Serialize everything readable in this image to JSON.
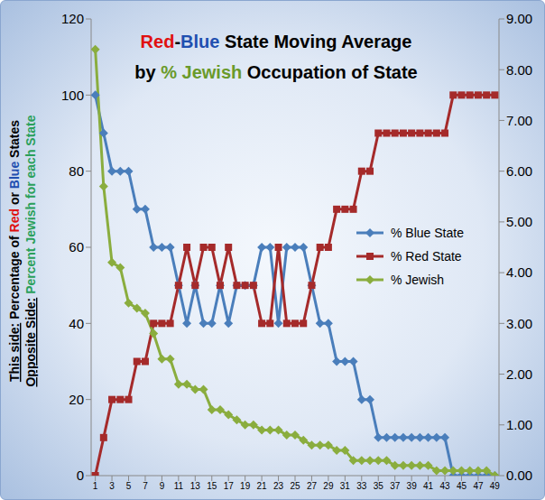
{
  "chart_data": {
    "type": "line",
    "title": [
      "Red-Blue State Moving Average",
      "by % Jewish Occupation of State"
    ],
    "ylabel": "This side: Percentage of Red or Blue States",
    "y2label": "Opposite Side: Percent Jewish for each State",
    "x": [
      1,
      2,
      3,
      4,
      5,
      6,
      7,
      8,
      9,
      10,
      11,
      12,
      13,
      14,
      15,
      16,
      17,
      18,
      19,
      20,
      21,
      22,
      23,
      24,
      25,
      26,
      27,
      28,
      29,
      30,
      31,
      32,
      33,
      34,
      35,
      36,
      37,
      38,
      39,
      40,
      41,
      42,
      43,
      44,
      45,
      46,
      47,
      48,
      49
    ],
    "xlim": [
      0.5,
      49.5
    ],
    "xticks": [
      1,
      3,
      5,
      7,
      9,
      11,
      13,
      15,
      17,
      19,
      21,
      23,
      25,
      27,
      29,
      31,
      33,
      35,
      37,
      39,
      41,
      43,
      45,
      47,
      49
    ],
    "ylim": [
      0,
      120
    ],
    "yticks": [
      0,
      20,
      40,
      60,
      80,
      100,
      120
    ],
    "y2lim": [
      0,
      9
    ],
    "y2ticks": [
      {
        "value": 0,
        "label": "0.00"
      },
      {
        "value": 1,
        "label": "1.00"
      },
      {
        "value": 2,
        "label": "2.00"
      },
      {
        "value": 3,
        "label": "3.00"
      },
      {
        "value": 4,
        "label": "4.00"
      },
      {
        "value": 5,
        "label": "5.00"
      },
      {
        "value": 6,
        "label": "6.00"
      },
      {
        "value": 7,
        "label": "7.00"
      },
      {
        "value": 8,
        "label": "8.00"
      },
      {
        "value": 9,
        "label": "9.00"
      }
    ],
    "grid": false,
    "legend": "right",
    "series": [
      {
        "name": "% Blue State",
        "color": "#4a7ebb",
        "marker": "diamond",
        "values": [
          100,
          90,
          80,
          80,
          80,
          70,
          70,
          60,
          60,
          60,
          50,
          40,
          50,
          40,
          40,
          50,
          40,
          50,
          50,
          50,
          60,
          60,
          40,
          60,
          60,
          60,
          50,
          40,
          40,
          30,
          30,
          30,
          20,
          20,
          10,
          10,
          10,
          10,
          10,
          10,
          10,
          10,
          10,
          0,
          0,
          0,
          0,
          0,
          0
        ]
      },
      {
        "name": "% Red State",
        "color": "#a52a2a",
        "marker": "square",
        "values": [
          0,
          10,
          20,
          20,
          20,
          30,
          30,
          40,
          40,
          40,
          50,
          60,
          50,
          60,
          60,
          50,
          60,
          50,
          50,
          50,
          40,
          40,
          60,
          40,
          40,
          40,
          50,
          60,
          60,
          70,
          70,
          70,
          80,
          80,
          90,
          90,
          90,
          90,
          90,
          90,
          90,
          90,
          90,
          100,
          100,
          100,
          100,
          100,
          100
        ]
      },
      {
        "name": "% Jewish",
        "color": "#8aad3e",
        "marker": "diamond",
        "axis": "y2",
        "values": [
          8.4,
          5.7,
          4.2,
          4.1,
          3.4,
          3.3,
          3.2,
          2.8,
          2.3,
          2.3,
          1.8,
          1.8,
          1.7,
          1.7,
          1.3,
          1.3,
          1.2,
          1.1,
          1.0,
          1.0,
          0.9,
          0.9,
          0.9,
          0.8,
          0.8,
          0.7,
          0.6,
          0.6,
          0.6,
          0.5,
          0.5,
          0.3,
          0.3,
          0.3,
          0.3,
          0.3,
          0.2,
          0.2,
          0.2,
          0.2,
          0.2,
          0.1,
          0.1,
          0.1,
          0.1,
          0.1,
          0.1,
          0.1,
          0.0
        ]
      }
    ]
  }
}
